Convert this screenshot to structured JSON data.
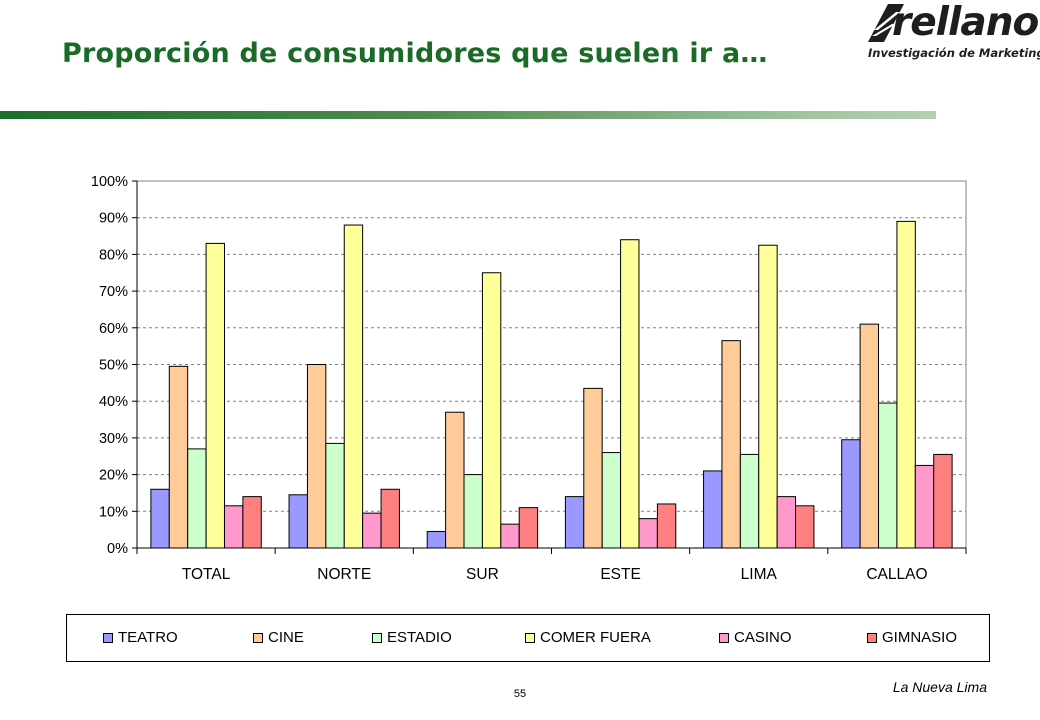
{
  "header": {
    "title": "Proporción de consumidores que suelen ir a…",
    "logo_text": "rellano",
    "logo_sub": "Investigación de Marketing"
  },
  "footer": {
    "page_number": "55",
    "note": "La Nueva Lima"
  },
  "chart_data": {
    "type": "bar",
    "categories": [
      "TOTAL",
      "NORTE",
      "SUR",
      "ESTE",
      "LIMA",
      "CALLAO"
    ],
    "ylim": [
      0,
      100
    ],
    "yticks": [
      0,
      10,
      20,
      30,
      40,
      50,
      60,
      70,
      80,
      90,
      100
    ],
    "ytick_labels": [
      "0%",
      "10%",
      "20%",
      "30%",
      "40%",
      "50%",
      "60%",
      "70%",
      "80%",
      "90%",
      "100%"
    ],
    "grid": true,
    "legend_position": "bottom",
    "series": [
      {
        "name": "TEATRO",
        "color": "#9999ff",
        "values": [
          16,
          14.5,
          4.5,
          14,
          21,
          29.5
        ]
      },
      {
        "name": "CINE",
        "color": "#ffcc99",
        "values": [
          49.5,
          50,
          37,
          43.5,
          56.5,
          61
        ]
      },
      {
        "name": "ESTADIO",
        "color": "#ccffcc",
        "values": [
          27,
          28.5,
          20,
          26,
          25.5,
          39.5
        ]
      },
      {
        "name": "COMER FUERA",
        "color": "#ffff99",
        "values": [
          83,
          88,
          75,
          84,
          82.5,
          89
        ]
      },
      {
        "name": "CASINO",
        "color": "#ff99cc",
        "values": [
          11.5,
          9.5,
          6.5,
          8,
          14,
          22.5
        ]
      },
      {
        "name": "GIMNASIO",
        "color": "#ff8080",
        "values": [
          14,
          16,
          11,
          12,
          11.5,
          25.5
        ]
      }
    ]
  }
}
